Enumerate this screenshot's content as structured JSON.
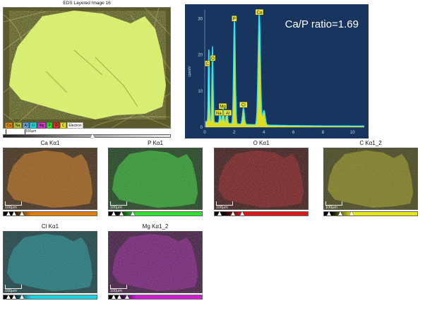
{
  "layered": {
    "title": "EDS Layered Image 16",
    "legend": [
      {
        "label": "Ca",
        "color": "#e08a1a"
      },
      {
        "label": "Na",
        "color": "#b8c040"
      },
      {
        "label": "Al",
        "color": "#6fa8dc"
      },
      {
        "label": "Cl",
        "color": "#27d6e0"
      },
      {
        "label": "Mg",
        "color": "#d040d0"
      },
      {
        "label": "P",
        "color": "#38e038"
      },
      {
        "label": "O",
        "color": "#e03030"
      },
      {
        "label": "C",
        "color": "#e8e030"
      },
      {
        "label": "Electron",
        "color": "#ffffff"
      }
    ],
    "scale_label": "100µm"
  },
  "spectrum": {
    "ratio_text": "Ca/P ratio=1.69",
    "y_axis_label": "cps/eV",
    "x_ticks": [
      "0",
      "2",
      "4",
      "6",
      "8",
      "10"
    ],
    "y_ticks": [
      "0",
      "10",
      "20",
      "30"
    ],
    "peak_labels": [
      "C",
      "O",
      "Na",
      "Mg",
      "Al",
      "P",
      "Cl",
      "Ca"
    ]
  },
  "maps": [
    {
      "title": "Ca Kα1",
      "color": "#e07c0c",
      "scale_label": "100µm"
    },
    {
      "title": "P Kα1",
      "color": "#2fe02f",
      "scale_label": "100µm"
    },
    {
      "title": "O Kα1",
      "color": "#d81818",
      "scale_label": "100µm"
    },
    {
      "title": "C Kα1_2",
      "color": "#e6e61a",
      "scale_label": "100µm"
    },
    {
      "title": "Cl Kα1",
      "color": "#18d4e0",
      "scale_label": "100µm"
    },
    {
      "title": "Mg Kα1_2",
      "color": "#d41cd4",
      "scale_label": "100µm"
    }
  ]
}
